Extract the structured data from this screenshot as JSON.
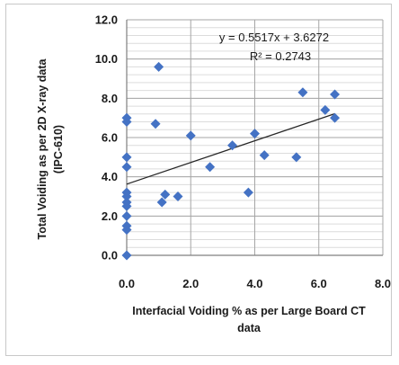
{
  "chart_data": {
    "type": "scatter",
    "title": "",
    "xlabel_lines": [
      "Interfacial Voiding % as per Large Board CT",
      "data"
    ],
    "ylabel_lines": [
      "Total Voiding as per 2D X-ray data",
      "(IPC-610)"
    ],
    "xlim": [
      0,
      8
    ],
    "ylim": [
      0,
      12
    ],
    "xticks": [
      0,
      2,
      4,
      6,
      8
    ],
    "xtick_labels": [
      "0.0",
      "2.0",
      "4.0",
      "6.0",
      "8.0"
    ],
    "yticks": [
      0,
      2,
      4,
      6,
      8,
      10,
      12
    ],
    "ytick_labels": [
      "0.0",
      "2.0",
      "4.0",
      "6.0",
      "8.0",
      "10.0",
      "12.0"
    ],
    "y_minor_step": 0.4,
    "grid": true,
    "marker_color": "#4472c4",
    "series": [
      {
        "points": [
          [
            0.0,
            0.0
          ],
          [
            0.0,
            1.3
          ],
          [
            0.0,
            1.5
          ],
          [
            0.0,
            2.0
          ],
          [
            0.0,
            2.5
          ],
          [
            0.0,
            2.7
          ],
          [
            0.0,
            3.0
          ],
          [
            0.0,
            3.2
          ],
          [
            0.0,
            4.5
          ],
          [
            0.0,
            5.0
          ],
          [
            0.0,
            6.8
          ],
          [
            0.0,
            7.0
          ],
          [
            0.9,
            6.7
          ],
          [
            1.0,
            9.6
          ],
          [
            1.1,
            2.7
          ],
          [
            1.2,
            3.1
          ],
          [
            1.6,
            3.0
          ],
          [
            2.0,
            6.1
          ],
          [
            2.6,
            4.5
          ],
          [
            3.3,
            5.6
          ],
          [
            3.8,
            3.2
          ],
          [
            4.0,
            6.2
          ],
          [
            4.3,
            5.1
          ],
          [
            5.3,
            5.0
          ],
          [
            5.5,
            8.3
          ],
          [
            6.2,
            7.4
          ],
          [
            6.5,
            7.0
          ],
          [
            6.5,
            8.2
          ]
        ]
      }
    ],
    "trendline": {
      "slope": 0.5517,
      "intercept": 3.6272,
      "x_range": [
        0,
        6.5
      ],
      "equation_label": "y = 0.5517x + 3.6272",
      "r2_label": "R² = 0.2743"
    }
  }
}
